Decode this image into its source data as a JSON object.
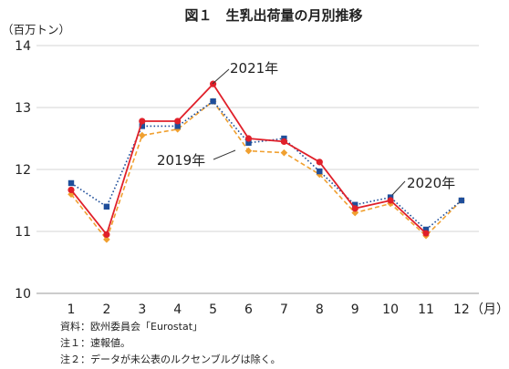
{
  "chart_data": {
    "type": "line",
    "title": "図１　生乳出荷量の月別推移",
    "ylabel": "（百万トン）",
    "xlabel": "（月）",
    "categories": [
      "1",
      "2",
      "3",
      "4",
      "5",
      "6",
      "7",
      "8",
      "9",
      "10",
      "11",
      "12"
    ],
    "ylim": [
      10,
      14
    ],
    "yticks": [
      10,
      11,
      12,
      13,
      14
    ],
    "grid": true,
    "series": [
      {
        "name": "2019年",
        "color": "#f0a030",
        "style": "dashed",
        "marker": "diamond",
        "values": [
          11.6,
          10.87,
          12.55,
          12.65,
          13.1,
          12.3,
          12.27,
          11.92,
          11.3,
          11.45,
          10.93,
          11.5
        ]
      },
      {
        "name": "2020年",
        "color": "#1f4e9a",
        "style": "dotted",
        "marker": "square",
        "values": [
          11.78,
          11.4,
          12.7,
          12.7,
          13.1,
          12.43,
          12.5,
          11.97,
          11.43,
          11.55,
          11.03,
          11.5
        ]
      },
      {
        "name": "2021年",
        "color": "#e0202a",
        "style": "solid",
        "marker": "circle",
        "values": [
          11.67,
          10.95,
          12.78,
          12.78,
          13.38,
          12.5,
          12.45,
          12.12,
          11.37,
          11.5,
          10.97,
          null
        ]
      }
    ],
    "notes": [
      "資料：欧州委員会「Eurostat」",
      "注１：速報値。",
      "注２：データが未公表のルクセンブルグは除く。"
    ]
  }
}
